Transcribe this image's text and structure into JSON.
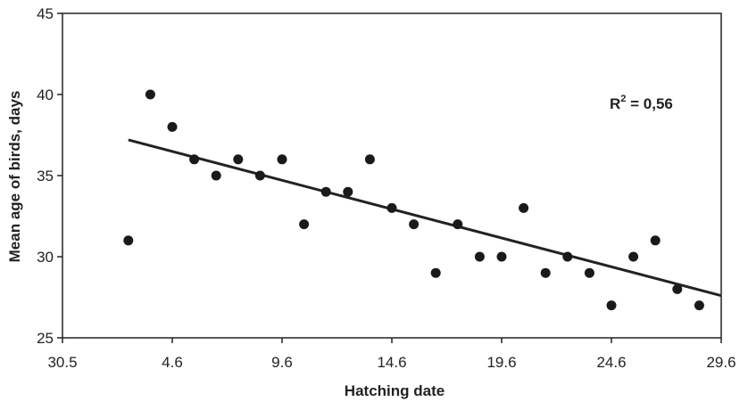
{
  "chart_data": {
    "type": "scatter",
    "xlabel": "Hatching date",
    "ylabel": "Mean age of birds, days",
    "x_ticks": [
      "30.5",
      "4.6",
      "9.6",
      "14.6",
      "19.6",
      "24.6",
      "29.6"
    ],
    "x_range_days": [
      0,
      30
    ],
    "ylim": [
      25,
      45
    ],
    "y_ticks": [
      25,
      30,
      35,
      40,
      45
    ],
    "grid": false,
    "annotation": {
      "prefix": "R",
      "sup": "2",
      "suffix": " = 0,56"
    },
    "trendline": {
      "start": [
        3,
        37.2
      ],
      "end": [
        30,
        27.6
      ]
    },
    "points": [
      {
        "x": "2.6",
        "y": 31
      },
      {
        "x": "3.6",
        "y": 40
      },
      {
        "x": "4.6",
        "y": 38
      },
      {
        "x": "5.6",
        "y": 36
      },
      {
        "x": "6.6",
        "y": 35
      },
      {
        "x": "7.6",
        "y": 36
      },
      {
        "x": "8.6",
        "y": 35
      },
      {
        "x": "9.6",
        "y": 36
      },
      {
        "x": "10.6",
        "y": 32
      },
      {
        "x": "11.6",
        "y": 34
      },
      {
        "x": "12.6",
        "y": 34
      },
      {
        "x": "13.6",
        "y": 36
      },
      {
        "x": "14.6",
        "y": 33
      },
      {
        "x": "15.6",
        "y": 32
      },
      {
        "x": "16.6",
        "y": 29
      },
      {
        "x": "17.6",
        "y": 32
      },
      {
        "x": "18.6",
        "y": 30
      },
      {
        "x": "19.6",
        "y": 30
      },
      {
        "x": "20.6",
        "y": 33
      },
      {
        "x": "21.6",
        "y": 29
      },
      {
        "x": "22.6",
        "y": 30
      },
      {
        "x": "23.6",
        "y": 29
      },
      {
        "x": "24.6",
        "y": 27
      },
      {
        "x": "25.6",
        "y": 30
      },
      {
        "x": "26.6",
        "y": 31
      },
      {
        "x": "27.6",
        "y": 28
      },
      {
        "x": "28.6",
        "y": 27
      }
    ]
  }
}
